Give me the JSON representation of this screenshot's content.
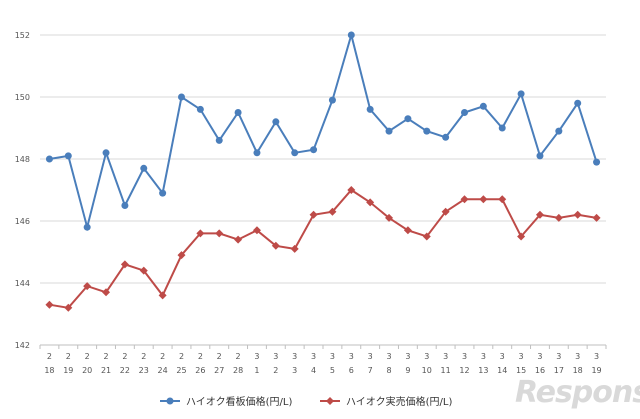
{
  "chart_data": {
    "type": "line",
    "title": "",
    "xlabel": "",
    "ylabel": "",
    "ylim": [
      142,
      152
    ],
    "yticks": [
      142,
      144,
      146,
      148,
      150,
      152
    ],
    "grid": "horizontal",
    "legend_position": "bottom",
    "categories": [
      {
        "month": "2",
        "day": "18"
      },
      {
        "month": "2",
        "day": "19"
      },
      {
        "month": "2",
        "day": "20"
      },
      {
        "month": "2",
        "day": "21"
      },
      {
        "month": "2",
        "day": "22"
      },
      {
        "month": "2",
        "day": "23"
      },
      {
        "month": "2",
        "day": "24"
      },
      {
        "month": "2",
        "day": "25"
      },
      {
        "month": "2",
        "day": "26"
      },
      {
        "month": "2",
        "day": "27"
      },
      {
        "month": "2",
        "day": "28"
      },
      {
        "month": "3",
        "day": "1"
      },
      {
        "month": "3",
        "day": "2"
      },
      {
        "month": "3",
        "day": "3"
      },
      {
        "month": "3",
        "day": "4"
      },
      {
        "month": "3",
        "day": "5"
      },
      {
        "month": "3",
        "day": "6"
      },
      {
        "month": "3",
        "day": "7"
      },
      {
        "month": "3",
        "day": "8"
      },
      {
        "month": "3",
        "day": "9"
      },
      {
        "month": "3",
        "day": "10"
      },
      {
        "month": "3",
        "day": "11"
      },
      {
        "month": "3",
        "day": "12"
      },
      {
        "month": "3",
        "day": "13"
      },
      {
        "month": "3",
        "day": "14"
      },
      {
        "month": "3",
        "day": "15"
      },
      {
        "month": "3",
        "day": "16"
      },
      {
        "month": "3",
        "day": "17"
      },
      {
        "month": "3",
        "day": "18"
      },
      {
        "month": "3",
        "day": "19"
      }
    ],
    "series": [
      {
        "name": "ハイオク看板価格(円/L)",
        "color": "#4a7ebb",
        "marker": "circle",
        "values": [
          148.0,
          148.1,
          145.8,
          148.2,
          146.5,
          147.7,
          146.9,
          150.0,
          149.6,
          148.6,
          149.5,
          148.2,
          149.2,
          148.2,
          148.3,
          149.9,
          152.0,
          149.6,
          148.9,
          149.3,
          148.9,
          148.7,
          149.5,
          149.7,
          149.0,
          150.1,
          148.1,
          148.9,
          149.8,
          147.9
        ]
      },
      {
        "name": "ハイオク実売価格(円/L)",
        "color": "#be4b48",
        "marker": "diamond",
        "values": [
          143.3,
          143.2,
          143.9,
          143.7,
          144.6,
          144.4,
          143.6,
          144.9,
          145.6,
          145.6,
          145.4,
          145.7,
          145.2,
          145.1,
          146.2,
          146.3,
          147.0,
          146.6,
          146.1,
          145.7,
          145.5,
          146.3,
          146.7,
          146.7,
          146.7,
          145.5,
          146.2,
          146.1,
          146.2,
          146.1
        ]
      }
    ]
  },
  "watermark": {
    "text": "Response."
  }
}
